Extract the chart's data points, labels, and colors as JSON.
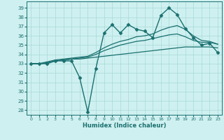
{
  "title": "",
  "xlabel": "Humidex (Indice chaleur)",
  "xlim": [
    -0.5,
    23.5
  ],
  "ylim": [
    27.5,
    39.7
  ],
  "yticks": [
    28,
    29,
    30,
    31,
    32,
    33,
    34,
    35,
    36,
    37,
    38,
    39
  ],
  "xticks": [
    0,
    1,
    2,
    3,
    4,
    5,
    6,
    7,
    8,
    9,
    10,
    11,
    12,
    13,
    14,
    15,
    16,
    17,
    18,
    19,
    20,
    21,
    22,
    23
  ],
  "bg_color": "#cff0f0",
  "grid_color": "#a8d8d8",
  "line_color": "#1a7070",
  "lines": [
    {
      "x": [
        0,
        1,
        2,
        3,
        4,
        5,
        6,
        7,
        8,
        9,
        10,
        11,
        12,
        13,
        14,
        15,
        16,
        17,
        18,
        19,
        20,
        21,
        22,
        23
      ],
      "y": [
        33,
        33,
        33,
        33.3,
        33.3,
        33.3,
        31.5,
        27.8,
        32.5,
        36.3,
        37.2,
        36.3,
        37.2,
        36.7,
        36.5,
        35.8,
        38.2,
        39.0,
        38.3,
        36.8,
        35.8,
        35.0,
        35.2,
        34.2
      ],
      "marker": "D",
      "markersize": 2.5,
      "linewidth": 1.0
    },
    {
      "x": [
        0,
        1,
        2,
        3,
        4,
        5,
        6,
        7,
        8,
        9,
        10,
        11,
        12,
        13,
        14,
        15,
        16,
        17,
        18,
        19,
        20,
        21,
        22,
        23
      ],
      "y": [
        33,
        33,
        33.1,
        33.3,
        33.4,
        33.5,
        33.5,
        33.6,
        33.7,
        33.8,
        33.9,
        34.0,
        34.1,
        34.2,
        34.3,
        34.4,
        34.5,
        34.6,
        34.7,
        34.8,
        34.8,
        34.8,
        34.8,
        34.7
      ],
      "marker": null,
      "markersize": 0,
      "linewidth": 0.9
    },
    {
      "x": [
        0,
        1,
        2,
        3,
        4,
        5,
        6,
        7,
        8,
        9,
        10,
        11,
        12,
        13,
        14,
        15,
        16,
        17,
        18,
        19,
        20,
        21,
        22,
        23
      ],
      "y": [
        33,
        33,
        33.1,
        33.3,
        33.4,
        33.5,
        33.6,
        33.7,
        34.0,
        34.4,
        34.7,
        35.0,
        35.2,
        35.4,
        35.5,
        35.7,
        35.9,
        36.1,
        36.2,
        35.9,
        35.5,
        35.3,
        35.3,
        35.1
      ],
      "marker": null,
      "markersize": 0,
      "linewidth": 0.9
    },
    {
      "x": [
        0,
        1,
        2,
        3,
        4,
        5,
        6,
        7,
        8,
        9,
        10,
        11,
        12,
        13,
        14,
        15,
        16,
        17,
        18,
        19,
        20,
        21,
        22,
        23
      ],
      "y": [
        33,
        33,
        33.2,
        33.4,
        33.5,
        33.6,
        33.7,
        33.8,
        34.2,
        34.7,
        35.1,
        35.4,
        35.6,
        35.9,
        36.0,
        36.2,
        36.6,
        36.9,
        37.1,
        36.7,
        36.0,
        35.5,
        35.4,
        35.1
      ],
      "marker": null,
      "markersize": 0,
      "linewidth": 0.9
    }
  ]
}
